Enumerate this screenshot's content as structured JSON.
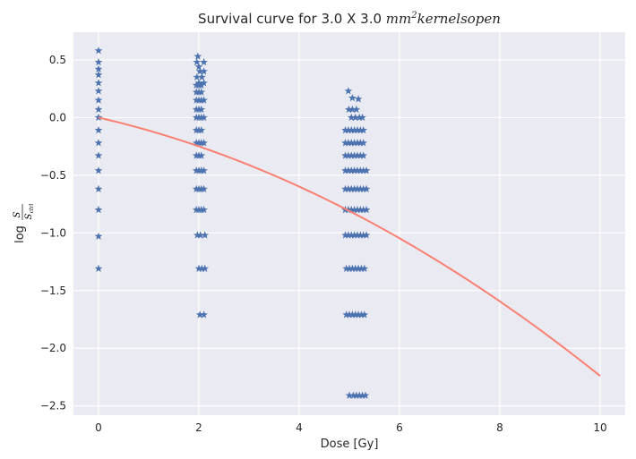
{
  "chart_data": {
    "type": "scatter",
    "title": {
      "prefix": "Survival curve for 3.0 X 3.0 ",
      "math_base": "mm",
      "math_sup": "2",
      "math_rest": "kernelsopen"
    },
    "xlabel": "Dose [Gy]",
    "ylabel": {
      "prefix": "log",
      "numerator": "S",
      "denominator": "S",
      "denominator_sub": "ctrl"
    },
    "xlim": [
      -0.5,
      10.5
    ],
    "ylim": [
      -2.58,
      0.74
    ],
    "xticks": [
      0,
      2,
      4,
      6,
      8,
      10
    ],
    "xtick_labels": [
      "0",
      "2",
      "4",
      "6",
      "8",
      "10"
    ],
    "yticks": [
      0.5,
      0.0,
      -0.5,
      -1.0,
      -1.5,
      -2.0,
      -2.5
    ],
    "ytick_labels": [
      "0.5",
      "0.0",
      "−0.5",
      "−1.0",
      "−1.5",
      "−2.0",
      "−2.5"
    ],
    "grid": true,
    "background": "#eaeaf2",
    "grid_color": "#ffffff",
    "marker_color": "#4c72b0",
    "line_color": "#fa8072",
    "fit_curve": {
      "model": "linear-quadratic",
      "alpha": 0.1,
      "beta": 0.0124,
      "x_range": [
        0,
        10
      ]
    },
    "scatter_points": [
      {
        "x": 0.0,
        "y": 0.58
      },
      {
        "x": 0.0,
        "y": 0.48
      },
      {
        "x": 0.0,
        "y": 0.42
      },
      {
        "x": 0.0,
        "y": 0.37
      },
      {
        "x": 0.0,
        "y": 0.3
      },
      {
        "x": 0.0,
        "y": 0.23
      },
      {
        "x": 0.0,
        "y": 0.15
      },
      {
        "x": 0.0,
        "y": 0.07
      },
      {
        "x": 0.0,
        "y": 0.0
      },
      {
        "x": 0.0,
        "y": -0.11
      },
      {
        "x": 0.0,
        "y": -0.22
      },
      {
        "x": 0.0,
        "y": -0.33
      },
      {
        "x": 0.0,
        "y": -0.46
      },
      {
        "x": 0.0,
        "y": -0.62
      },
      {
        "x": 0.0,
        "y": -0.8
      },
      {
        "x": 0.0,
        "y": -1.03
      },
      {
        "x": 0.0,
        "y": -1.31
      },
      {
        "x": 1.98,
        "y": 0.53
      },
      {
        "x": 1.96,
        "y": 0.48
      },
      {
        "x": 2.0,
        "y": 0.44
      },
      {
        "x": 2.02,
        "y": 0.4
      },
      {
        "x": 1.96,
        "y": 0.35
      },
      {
        "x": 2.06,
        "y": 0.35
      },
      {
        "x": 2.0,
        "y": 0.3
      },
      {
        "x": 1.95,
        "y": 0.28
      },
      {
        "x": 2.0,
        "y": 0.28
      },
      {
        "x": 2.05,
        "y": 0.28
      },
      {
        "x": 1.95,
        "y": 0.22
      },
      {
        "x": 2.0,
        "y": 0.22
      },
      {
        "x": 2.05,
        "y": 0.22
      },
      {
        "x": 1.95,
        "y": 0.15
      },
      {
        "x": 2.0,
        "y": 0.15
      },
      {
        "x": 2.05,
        "y": 0.15
      },
      {
        "x": 1.95,
        "y": 0.07
      },
      {
        "x": 2.0,
        "y": 0.07
      },
      {
        "x": 2.05,
        "y": 0.07
      },
      {
        "x": 1.95,
        "y": 0.0
      },
      {
        "x": 2.0,
        "y": 0.0
      },
      {
        "x": 2.05,
        "y": 0.0
      },
      {
        "x": 1.95,
        "y": -0.11
      },
      {
        "x": 2.0,
        "y": -0.11
      },
      {
        "x": 2.05,
        "y": -0.11
      },
      {
        "x": 1.95,
        "y": -0.22
      },
      {
        "x": 2.0,
        "y": -0.22
      },
      {
        "x": 2.05,
        "y": -0.22
      },
      {
        "x": 1.95,
        "y": -0.33
      },
      {
        "x": 2.0,
        "y": -0.33
      },
      {
        "x": 2.05,
        "y": -0.33
      },
      {
        "x": 1.95,
        "y": -0.46
      },
      {
        "x": 2.0,
        "y": -0.46
      },
      {
        "x": 2.05,
        "y": -0.46
      },
      {
        "x": 1.95,
        "y": -0.62
      },
      {
        "x": 2.0,
        "y": -0.62
      },
      {
        "x": 2.05,
        "y": -0.62
      },
      {
        "x": 1.95,
        "y": -0.8
      },
      {
        "x": 2.0,
        "y": -0.8
      },
      {
        "x": 2.05,
        "y": -0.8
      },
      {
        "x": 1.97,
        "y": -1.02
      },
      {
        "x": 2.03,
        "y": -1.02
      },
      {
        "x": 2.12,
        "y": -1.02
      },
      {
        "x": 2.0,
        "y": -1.31
      },
      {
        "x": 2.06,
        "y": -1.31
      },
      {
        "x": 2.12,
        "y": -1.31
      },
      {
        "x": 2.02,
        "y": -1.71
      },
      {
        "x": 2.1,
        "y": -1.71
      },
      {
        "x": 2.1,
        "y": 0.48
      },
      {
        "x": 2.1,
        "y": 0.4
      },
      {
        "x": 2.1,
        "y": 0.3
      },
      {
        "x": 2.1,
        "y": 0.15
      },
      {
        "x": 2.1,
        "y": 0.0
      },
      {
        "x": 2.1,
        "y": -0.22
      },
      {
        "x": 2.1,
        "y": -0.46
      },
      {
        "x": 2.1,
        "y": -0.62
      },
      {
        "x": 2.1,
        "y": -0.8
      },
      {
        "x": 4.98,
        "y": 0.23
      },
      {
        "x": 5.06,
        "y": 0.17
      },
      {
        "x": 5.18,
        "y": 0.16
      },
      {
        "x": 4.99,
        "y": 0.07
      },
      {
        "x": 5.06,
        "y": 0.07
      },
      {
        "x": 5.14,
        "y": 0.07
      },
      {
        "x": 5.04,
        "y": 0.0
      },
      {
        "x": 5.12,
        "y": 0.0
      },
      {
        "x": 5.2,
        "y": 0.0
      },
      {
        "x": 5.26,
        "y": 0.0
      },
      {
        "x": 4.92,
        "y": -0.11
      },
      {
        "x": 4.98,
        "y": -0.11
      },
      {
        "x": 5.04,
        "y": -0.11
      },
      {
        "x": 5.1,
        "y": -0.11
      },
      {
        "x": 5.16,
        "y": -0.11
      },
      {
        "x": 5.22,
        "y": -0.11
      },
      {
        "x": 5.28,
        "y": -0.11
      },
      {
        "x": 4.92,
        "y": -0.22
      },
      {
        "x": 4.98,
        "y": -0.22
      },
      {
        "x": 5.04,
        "y": -0.22
      },
      {
        "x": 5.1,
        "y": -0.22
      },
      {
        "x": 5.16,
        "y": -0.22
      },
      {
        "x": 5.22,
        "y": -0.22
      },
      {
        "x": 5.28,
        "y": -0.22
      },
      {
        "x": 4.92,
        "y": -0.33
      },
      {
        "x": 4.98,
        "y": -0.33
      },
      {
        "x": 5.04,
        "y": -0.33
      },
      {
        "x": 5.1,
        "y": -0.33
      },
      {
        "x": 5.16,
        "y": -0.33
      },
      {
        "x": 5.22,
        "y": -0.33
      },
      {
        "x": 5.28,
        "y": -0.33
      },
      {
        "x": 4.92,
        "y": -0.46
      },
      {
        "x": 4.98,
        "y": -0.46
      },
      {
        "x": 5.04,
        "y": -0.46
      },
      {
        "x": 5.1,
        "y": -0.46
      },
      {
        "x": 5.16,
        "y": -0.46
      },
      {
        "x": 5.22,
        "y": -0.46
      },
      {
        "x": 5.28,
        "y": -0.46
      },
      {
        "x": 5.34,
        "y": -0.46
      },
      {
        "x": 4.92,
        "y": -0.62
      },
      {
        "x": 4.98,
        "y": -0.62
      },
      {
        "x": 5.04,
        "y": -0.62
      },
      {
        "x": 5.1,
        "y": -0.62
      },
      {
        "x": 5.16,
        "y": -0.62
      },
      {
        "x": 5.22,
        "y": -0.62
      },
      {
        "x": 5.28,
        "y": -0.62
      },
      {
        "x": 5.34,
        "y": -0.62
      },
      {
        "x": 4.92,
        "y": -0.8
      },
      {
        "x": 4.98,
        "y": -0.8
      },
      {
        "x": 5.04,
        "y": -0.8
      },
      {
        "x": 5.1,
        "y": -0.8
      },
      {
        "x": 5.16,
        "y": -0.8
      },
      {
        "x": 5.22,
        "y": -0.8
      },
      {
        "x": 5.28,
        "y": -0.8
      },
      {
        "x": 5.34,
        "y": -0.8
      },
      {
        "x": 4.92,
        "y": -1.02
      },
      {
        "x": 4.98,
        "y": -1.02
      },
      {
        "x": 5.04,
        "y": -1.02
      },
      {
        "x": 5.1,
        "y": -1.02
      },
      {
        "x": 5.16,
        "y": -1.02
      },
      {
        "x": 5.22,
        "y": -1.02
      },
      {
        "x": 5.28,
        "y": -1.02
      },
      {
        "x": 5.34,
        "y": -1.02
      },
      {
        "x": 4.94,
        "y": -1.31
      },
      {
        "x": 5.0,
        "y": -1.31
      },
      {
        "x": 5.06,
        "y": -1.31
      },
      {
        "x": 5.12,
        "y": -1.31
      },
      {
        "x": 5.18,
        "y": -1.31
      },
      {
        "x": 5.24,
        "y": -1.31
      },
      {
        "x": 5.3,
        "y": -1.31
      },
      {
        "x": 4.94,
        "y": -1.71
      },
      {
        "x": 5.0,
        "y": -1.71
      },
      {
        "x": 5.06,
        "y": -1.71
      },
      {
        "x": 5.12,
        "y": -1.71
      },
      {
        "x": 5.18,
        "y": -1.71
      },
      {
        "x": 5.24,
        "y": -1.71
      },
      {
        "x": 5.3,
        "y": -1.71
      },
      {
        "x": 5.0,
        "y": -2.41
      },
      {
        "x": 5.08,
        "y": -2.41
      },
      {
        "x": 5.14,
        "y": -2.41
      },
      {
        "x": 5.2,
        "y": -2.41
      },
      {
        "x": 5.26,
        "y": -2.41
      },
      {
        "x": 5.32,
        "y": -2.41
      }
    ]
  }
}
